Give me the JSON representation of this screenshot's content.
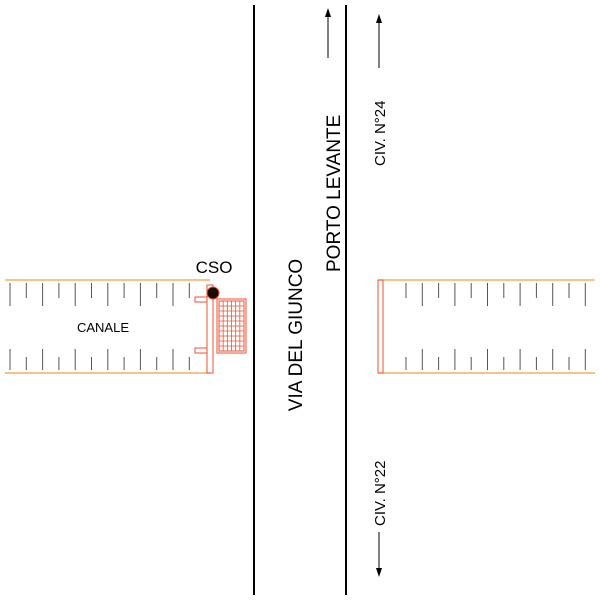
{
  "labels": {
    "cso": "CSO",
    "canale": "CANALE",
    "road_name": "VIA DEL GIUNCO",
    "direction": "PORTO LEVANTE",
    "civic_north": "CIV. N°24",
    "civic_south": "CIV. N°22"
  },
  "colors": {
    "canal_edge": "#f0a040",
    "structure": "#f05030",
    "road_line": "#000000",
    "tick": "#555555"
  }
}
